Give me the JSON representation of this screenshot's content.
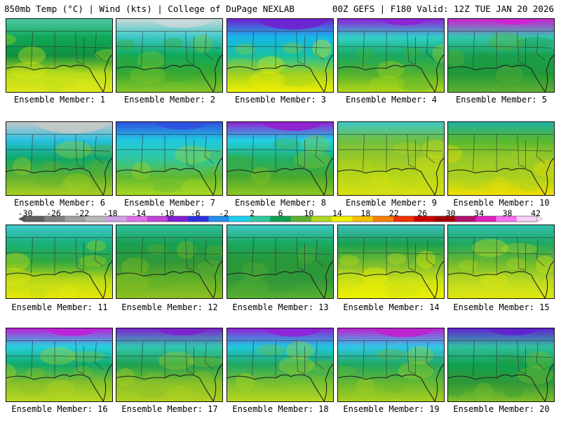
{
  "header": {
    "left": "850mb Temp (°C) | Wind (kts) | College of DuPage NEXLAB",
    "right": "00Z GEFS | F180 Valid: 12Z TUE JAN 20 2026"
  },
  "panels": [
    {
      "label": "Ensemble Member: 1",
      "top": [
        "#50c8a8",
        "#10a858",
        "#109040"
      ],
      "bottom": [
        "#b8dc18",
        "#e0e818"
      ],
      "cold": 0
    },
    {
      "label": "Ensemble Member: 2",
      "top": [
        "#c8d8d8",
        "#3cc8c8",
        "#10a858"
      ],
      "bottom": [
        "#38a830",
        "#88c828"
      ],
      "cold": 0.6
    },
    {
      "label": "Ensemble Member: 3",
      "top": [
        "#7020d0",
        "#18b8e8",
        "#18c0a0"
      ],
      "bottom": [
        "#a0d020",
        "#f0f000"
      ],
      "cold": 0.75
    },
    {
      "label": "Ensemble Member: 4",
      "top": [
        "#9020d8",
        "#30d0c8",
        "#18a860"
      ],
      "bottom": [
        "#50b030",
        "#b0d818"
      ],
      "cold": 0.4
    },
    {
      "label": "Ensemble Member: 5",
      "top": [
        "#d020d0",
        "#30c8b0",
        "#18a050"
      ],
      "bottom": [
        "#209838",
        "#60b030"
      ],
      "cold": 0.35
    },
    {
      "label": "Ensemble Member: 6",
      "top": [
        "#c8c8c8",
        "#28c0e0",
        "#10a868"
      ],
      "bottom": [
        "#60b030",
        "#a8d020"
      ],
      "cold": 0.8
    },
    {
      "label": "Ensemble Member: 7",
      "top": [
        "#3050e0",
        "#20c8e0",
        "#30c8a0"
      ],
      "bottom": [
        "#60b830",
        "#a8d820"
      ],
      "cold": 0.5
    },
    {
      "label": "Ensemble Member: 8",
      "top": [
        "#9020d0",
        "#20d0e8",
        "#20b068"
      ],
      "bottom": [
        "#48a830",
        "#90c820"
      ],
      "cold": 0.6
    },
    {
      "label": "Ensemble Member: 9",
      "top": [
        "#40c8c8",
        "#70c040",
        "#98c828"
      ],
      "bottom": [
        "#b8d818",
        "#d8e010"
      ],
      "cold": 0.2
    },
    {
      "label": "Ensemble Member: 10",
      "top": [
        "#20b0a0",
        "#58b830",
        "#98c828"
      ],
      "bottom": [
        "#a8d020",
        "#f0e000"
      ],
      "cold": 0.1
    },
    {
      "label": "Ensemble Member: 11",
      "top": [
        "#40c8d0",
        "#18b078",
        "#30a840"
      ],
      "bottom": [
        "#b8d818",
        "#e8e808"
      ],
      "cold": 0.25
    },
    {
      "label": "Ensemble Member: 12",
      "top": [
        "#30c0a0",
        "#18a050",
        "#309838"
      ],
      "bottom": [
        "#60b028",
        "#90c020"
      ],
      "cold": 0.15
    },
    {
      "label": "Ensemble Member: 13",
      "top": [
        "#40c8c8",
        "#18a860",
        "#289838"
      ],
      "bottom": [
        "#309838",
        "#58b030"
      ],
      "cold": 0.2
    },
    {
      "label": "Ensemble Member: 14",
      "top": [
        "#40c0c0",
        "#18a050",
        "#70b830"
      ],
      "bottom": [
        "#c8e018",
        "#f0f000"
      ],
      "cold": 0.2
    },
    {
      "label": "Ensemble Member: 15",
      "top": [
        "#30c0b0",
        "#20a860",
        "#68b830"
      ],
      "bottom": [
        "#b8d820",
        "#e0e810"
      ],
      "cold": 0.15
    },
    {
      "label": "Ensemble Member: 16",
      "top": [
        "#c020d8",
        "#28d0e0",
        "#10a868"
      ],
      "bottom": [
        "#88c028",
        "#b8d820"
      ],
      "cold": 0.5
    },
    {
      "label": "Ensemble Member: 17",
      "top": [
        "#8020d0",
        "#30c8b0",
        "#20a050"
      ],
      "bottom": [
        "#88c028",
        "#b0d020"
      ],
      "cold": 0.45
    },
    {
      "label": "Ensemble Member: 18",
      "top": [
        "#9020d8",
        "#20c8e0",
        "#20a860"
      ],
      "bottom": [
        "#78c030",
        "#b8d820"
      ],
      "cold": 0.55
    },
    {
      "label": "Ensemble Member: 19",
      "top": [
        "#c020d0",
        "#30c8e8",
        "#20a860"
      ],
      "bottom": [
        "#68b830",
        "#a8d020"
      ],
      "cold": 0.6
    },
    {
      "label": "Ensemble Member: 20",
      "top": [
        "#6020d0",
        "#30c0a0",
        "#10a050"
      ],
      "bottom": [
        "#309838",
        "#80c028"
      ],
      "cold": 0.45
    }
  ],
  "colorbar": {
    "ticks": [
      "-30",
      "-26",
      "-22",
      "-18",
      "-14",
      "-10",
      "-6",
      "-2",
      "2",
      "6",
      "10",
      "14",
      "18",
      "22",
      "26",
      "30",
      "34",
      "38",
      "42"
    ],
    "colors": [
      "#606060",
      "#808080",
      "#a0a0a0",
      "#b8b8b8",
      "#d0a0e8",
      "#e070e8",
      "#c040d8",
      "#8020d0",
      "#3030e0",
      "#2090e8",
      "#20d0f0",
      "#30c8a0",
      "#10a050",
      "#60b030",
      "#b0d820",
      "#f0f000",
      "#f8c000",
      "#f88000",
      "#f03000",
      "#d00000",
      "#a00000",
      "#b01070",
      "#e020c0",
      "#f870f0",
      "#f8d0f8"
    ]
  }
}
